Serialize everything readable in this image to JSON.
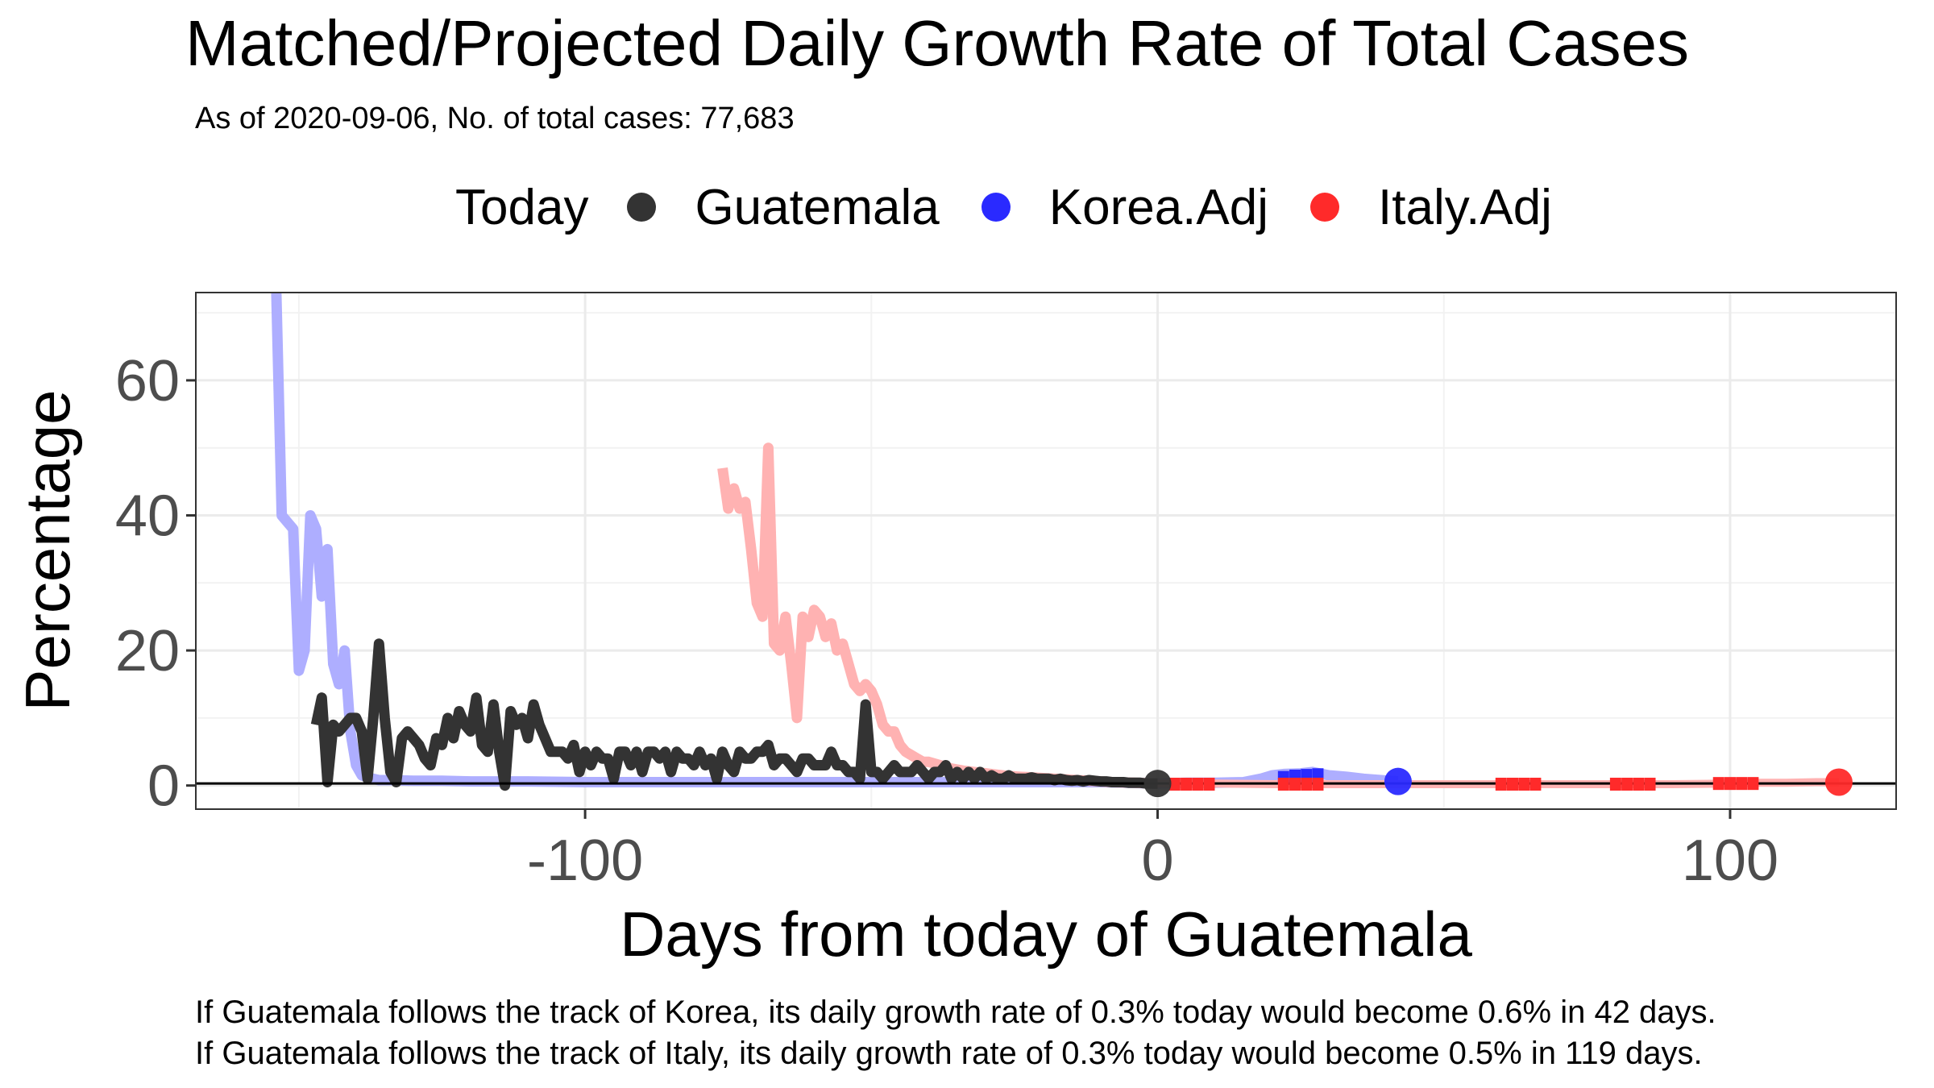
{
  "chart_data": {
    "type": "line",
    "title": "Matched/Projected Daily Growth Rate of Total Cases",
    "subtitle": "As of 2020-09-06, No. of total cases: 77,683",
    "xlabel": "Days from today of Guatemala",
    "ylabel": "Percentage",
    "xlim": [
      -168,
      129
    ],
    "ylim": [
      -3.5,
      73
    ],
    "x_ticks": [
      -100,
      0,
      100
    ],
    "x_tick_labels": [
      "-100",
      "0",
      "100"
    ],
    "y_ticks": [
      0,
      20,
      40,
      60
    ],
    "y_tick_labels": [
      "0",
      "20",
      "40",
      "60"
    ],
    "grid": true,
    "hline": 0.3,
    "legend": {
      "title": "Today",
      "placement": "top",
      "entries": [
        {
          "name": "Guatemala",
          "color": "#333333"
        },
        {
          "name": "Korea.Adj",
          "color": "#2a2aff"
        },
        {
          "name": "Italy.Adj",
          "color": "#ff2a2a"
        }
      ]
    },
    "series": [
      {
        "name": "Korea.Adj",
        "color": "#aeaeff",
        "x": [
          -154,
          -153,
          -152,
          -151,
          -150,
          -149,
          -148,
          -147,
          -146,
          -145,
          -144,
          -143,
          -142,
          -141,
          -140,
          -139,
          -138,
          -137,
          -136,
          -134,
          -130,
          -125,
          -120,
          -110,
          -100,
          -90,
          -80,
          -70,
          -60,
          -50,
          -40,
          -30,
          -20,
          -10,
          0
        ],
        "y": [
          75,
          40,
          39,
          38,
          17,
          20,
          40,
          38,
          28,
          35,
          18,
          15,
          20,
          8,
          3,
          1.5,
          1.2,
          1,
          0.8,
          0.8,
          0.7,
          0.7,
          0.6,
          0.6,
          0.5,
          0.5,
          0.5,
          0.5,
          0.5,
          0.5,
          0.5,
          0.5,
          0.5,
          0.5,
          0.3
        ]
      },
      {
        "name": "Korea.Adj projected",
        "color": "#aeaeff",
        "x": [
          0,
          5,
          10,
          15,
          18,
          20,
          22,
          25,
          27,
          30,
          33,
          36,
          39,
          42
        ],
        "y": [
          0.3,
          0.4,
          0.4,
          0.5,
          1,
          1.5,
          1.7,
          1.8,
          2,
          1.5,
          1.3,
          1,
          0.8,
          0.6
        ]
      },
      {
        "name": "Italy.Adj",
        "color": "#ffb2b2",
        "x": [
          -76,
          -75,
          -74,
          -73,
          -72,
          -71,
          -70,
          -69,
          -68,
          -67,
          -66,
          -65,
          -64,
          -63,
          -62,
          -61,
          -60,
          -59,
          -58,
          -57,
          -56,
          -55,
          -54,
          -53,
          -52,
          -51,
          -50,
          -49,
          -48,
          -47,
          -46,
          -45,
          -44,
          -43,
          -42,
          -41,
          -40,
          -38,
          -36,
          -34,
          -32,
          -30,
          -28,
          -26,
          -24,
          -22,
          -20,
          -18,
          -16,
          -14,
          -12,
          -10,
          -8,
          -6,
          -4,
          -2,
          0
        ],
        "y": [
          47,
          41,
          44,
          41,
          42,
          35,
          27,
          25,
          50,
          21,
          20,
          25,
          18,
          10,
          25,
          22,
          26,
          25,
          22,
          24,
          20,
          21,
          18,
          15,
          14,
          15,
          14,
          12,
          9,
          8,
          8,
          6,
          5,
          4.5,
          4,
          3.5,
          3.5,
          3,
          2.5,
          2.2,
          2,
          1.8,
          1.6,
          1.4,
          1.3,
          1.2,
          1.1,
          1,
          0.9,
          0.8,
          0.7,
          0.6,
          0.5,
          0.45,
          0.4,
          0.35,
          0.3
        ]
      },
      {
        "name": "Italy.Adj projected",
        "color": "#ffb2b2",
        "x": [
          0,
          10,
          20,
          30,
          40,
          50,
          60,
          70,
          80,
          90,
          100,
          105,
          110,
          115,
          119
        ],
        "y": [
          0.3,
          0.3,
          0.2,
          0.2,
          0.2,
          0.2,
          0.2,
          0.2,
          0.2,
          0.2,
          0.3,
          0.4,
          0.4,
          0.5,
          0.5
        ]
      },
      {
        "name": "Guatemala",
        "color": "#333333",
        "x": [
          -147,
          -146,
          -145,
          -144,
          -143,
          -142,
          -141,
          -140,
          -139,
          -138,
          -137,
          -136,
          -135,
          -134,
          -133,
          -132,
          -131,
          -130,
          -129,
          -128,
          -127,
          -126,
          -125,
          -124,
          -123,
          -122,
          -121,
          -120,
          -119,
          -118,
          -117,
          -116,
          -115,
          -114,
          -113,
          -112,
          -111,
          -110,
          -109,
          -108,
          -107,
          -106,
          -105,
          -104,
          -103,
          -102,
          -101,
          -100,
          -99,
          -98,
          -97,
          -96,
          -95,
          -94,
          -93,
          -92,
          -91,
          -90,
          -89,
          -88,
          -87,
          -86,
          -85,
          -84,
          -83,
          -82,
          -81,
          -80,
          -79,
          -78,
          -77,
          -76,
          -75,
          -74,
          -73,
          -72,
          -71,
          -70,
          -69,
          -68,
          -67,
          -66,
          -65,
          -64,
          -63,
          -62,
          -61,
          -60,
          -59,
          -58,
          -57,
          -56,
          -55,
          -54,
          -53,
          -52,
          -51,
          -50,
          -49,
          -48,
          -47,
          -46,
          -45,
          -44,
          -43,
          -42,
          -41,
          -40,
          -39,
          -38,
          -37,
          -36,
          -35,
          -34,
          -33,
          -32,
          -31,
          -30,
          -29,
          -28,
          -27,
          -26,
          -25,
          -24,
          -23,
          -22,
          -21,
          -20,
          -19,
          -18,
          -17,
          -16,
          -15,
          -14,
          -13,
          -12,
          -11,
          -10,
          -9,
          -8,
          -7,
          -6,
          -5,
          -4,
          -3,
          -2,
          -1,
          0
        ],
        "y": [
          9,
          13,
          0.5,
          9,
          8,
          9,
          10,
          10,
          8,
          1,
          10,
          21,
          10,
          2,
          0.5,
          7,
          8,
          7,
          6,
          4,
          3,
          7,
          6,
          10,
          7,
          11,
          9,
          8,
          13,
          6,
          5,
          12,
          5,
          0,
          11,
          9,
          10,
          7,
          12,
          9,
          7,
          5,
          5,
          5,
          4,
          6,
          2,
          5,
          3,
          5,
          4,
          4,
          1,
          5,
          5,
          3,
          5,
          2,
          5,
          5,
          4,
          5,
          2,
          5,
          4,
          4,
          3,
          5,
          3,
          4,
          1,
          5,
          3,
          2,
          5,
          4,
          4,
          5,
          5,
          6,
          3,
          4,
          4,
          3,
          2,
          4,
          4,
          3,
          3,
          3,
          5,
          3,
          3,
          2,
          2,
          1,
          12,
          2,
          2,
          1,
          2,
          3,
          2,
          2,
          2,
          3,
          2,
          1,
          2,
          2,
          3,
          1,
          2,
          1,
          2,
          1,
          2,
          1,
          1.5,
          1,
          1,
          1.5,
          1,
          1,
          1,
          1.2,
          1,
          1,
          1,
          0.8,
          1,
          0.8,
          0.7,
          0.8,
          0.6,
          0.8,
          0.7,
          0.6,
          0.6,
          0.5,
          0.5,
          0.5,
          0.4,
          0.4,
          0.4,
          0.3,
          0.3,
          0.3
        ]
      },
      {
        "name": "Korea.Adj points",
        "color": "#2a2aff",
        "points": true,
        "x": [
          22,
          24,
          26,
          28,
          42
        ],
        "y": [
          1.2,
          1.4,
          1.5,
          1.6,
          0.6
        ]
      },
      {
        "name": "Italy.Adj points",
        "color": "#ff2a2a",
        "points": true,
        "x": [
          3,
          5,
          7,
          9,
          22,
          24,
          26,
          28,
          60,
          62,
          64,
          66,
          80,
          82,
          84,
          86,
          98,
          100,
          102,
          104,
          119
        ],
        "y": [
          0.2,
          0.2,
          0.2,
          0.2,
          0.2,
          0.2,
          0.2,
          0.2,
          0.2,
          0.2,
          0.2,
          0.2,
          0.2,
          0.2,
          0.2,
          0.2,
          0.3,
          0.3,
          0.3,
          0.3,
          0.5
        ]
      },
      {
        "name": "Guatemala today",
        "color": "#333333",
        "points": true,
        "x": [
          0
        ],
        "y": [
          0.3
        ]
      }
    ]
  },
  "captions": {
    "korea": "If Guatemala follows the track of Korea, its daily growth rate of 0.3% today would become 0.6% in 42 days.",
    "italy": "If Guatemala follows the track of Italy, its daily growth rate of 0.3% today would become 0.5% in 119 days."
  }
}
